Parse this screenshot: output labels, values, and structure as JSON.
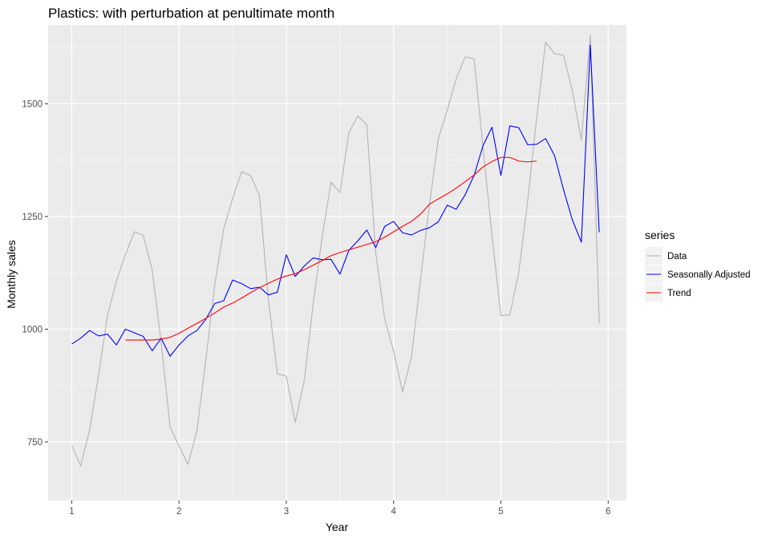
{
  "chart_data": {
    "type": "line",
    "title": "Plastics: with perturbation at penultimate month",
    "xlabel": "Year",
    "ylabel": "Monthly sales",
    "xlim": [
      0.78,
      6.17
    ],
    "ylim": [
      620,
      1675
    ],
    "x_ticks": [
      1,
      2,
      3,
      4,
      5,
      6
    ],
    "x_tick_labels": [
      "1",
      "2",
      "3",
      "4",
      "5",
      "6"
    ],
    "y_ticks": [
      750,
      1000,
      1250,
      1500
    ],
    "y_tick_labels": [
      "750",
      "1000",
      "1250",
      "1500"
    ],
    "grid": true,
    "legend": {
      "title": "series",
      "position": "right"
    },
    "series": [
      {
        "name": "Data",
        "color": "#b3b3b3",
        "x_start": 1,
        "x_step": 0.0833333,
        "values": [
          742,
          697,
          776,
          898,
          1030,
          1107,
          1165,
          1216,
          1208,
          1131,
          971,
          783,
          741,
          700,
          774,
          932,
          1099,
          1223,
          1290,
          1349,
          1341,
          1296,
          1066,
          901,
          896,
          793,
          885,
          1055,
          1204,
          1326,
          1303,
          1436,
          1473,
          1453,
          1170,
          1023,
          951,
          861,
          938,
          1109,
          1274,
          1422,
          1486,
          1555,
          1604,
          1600,
          1403,
          1209,
          1030,
          1032,
          1126,
          1285,
          1468,
          1637,
          1611,
          1608,
          1528,
          1420,
          1653,
          1013
        ]
      },
      {
        "name": "Seasonally Adjusted",
        "color": "#0000ff",
        "x_start": 1,
        "x_step": 0.0833333,
        "values": [
          967,
          980,
          997,
          985,
          989,
          965,
          1000,
          992,
          984,
          952,
          980,
          940,
          965,
          985,
          997,
          1022,
          1057,
          1063,
          1109,
          1101,
          1090,
          1093,
          1076,
          1082,
          1165,
          1117,
          1140,
          1158,
          1154,
          1155,
          1122,
          1175,
          1196,
          1220,
          1181,
          1228,
          1239,
          1214,
          1209,
          1219,
          1225,
          1238,
          1275,
          1266,
          1298,
          1341,
          1407,
          1448,
          1341,
          1451,
          1447,
          1409,
          1410,
          1423,
          1385,
          1310,
          1242,
          1193,
          1630,
          1215
        ]
      },
      {
        "name": "Trend",
        "color": "#ff0000",
        "x_start": 1.5,
        "x_step": 0.0833333,
        "values": [
          976,
          976,
          976,
          976,
          978,
          982,
          991,
          1002,
          1013,
          1024,
          1036,
          1049,
          1058,
          1069,
          1081,
          1092,
          1102,
          1111,
          1118,
          1123,
          1132,
          1142,
          1152,
          1163,
          1170,
          1176,
          1182,
          1188,
          1194,
          1204,
          1216,
          1228,
          1239,
          1255,
          1277,
          1289,
          1300,
          1313,
          1327,
          1342,
          1360,
          1372,
          1381,
          1381,
          1373,
          1371,
          1373
        ]
      }
    ]
  }
}
